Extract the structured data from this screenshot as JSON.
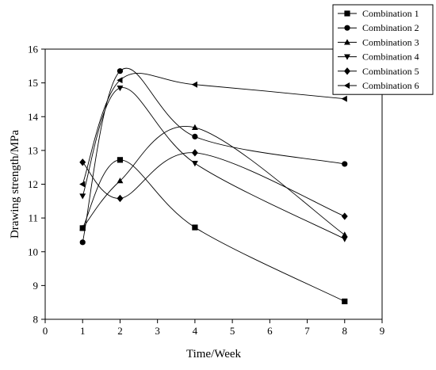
{
  "chart_data": {
    "type": "line",
    "title": "",
    "xlabel": "Time/Week",
    "ylabel": "Drawing strength/MPa",
    "xlim": [
      0,
      9
    ],
    "ylim": [
      8,
      16
    ],
    "xticks": [
      0,
      1,
      2,
      3,
      4,
      5,
      6,
      7,
      8,
      9
    ],
    "yticks": [
      8,
      9,
      10,
      11,
      12,
      13,
      14,
      15,
      16
    ],
    "x": [
      1,
      2,
      4,
      8
    ],
    "grid": false,
    "legend_position": "top-right",
    "line_color": "#000000",
    "series": [
      {
        "name": "Combination 1",
        "marker": "square",
        "values": [
          10.7,
          12.72,
          10.72,
          8.53
        ]
      },
      {
        "name": "Combination 2",
        "marker": "circle",
        "values": [
          10.28,
          15.35,
          13.41,
          12.6
        ]
      },
      {
        "name": "Combination 3",
        "marker": "triangle-up",
        "values": [
          10.7,
          12.1,
          13.68,
          10.5
        ]
      },
      {
        "name": "Combination 4",
        "marker": "triangle-down",
        "values": [
          11.65,
          14.85,
          12.62,
          10.38
        ]
      },
      {
        "name": "Combination 5",
        "marker": "diamond",
        "values": [
          12.65,
          11.58,
          12.93,
          11.05
        ]
      },
      {
        "name": "Combination 6",
        "marker": "triangle-left",
        "values": [
          12.0,
          15.08,
          14.95,
          14.53
        ]
      }
    ]
  }
}
